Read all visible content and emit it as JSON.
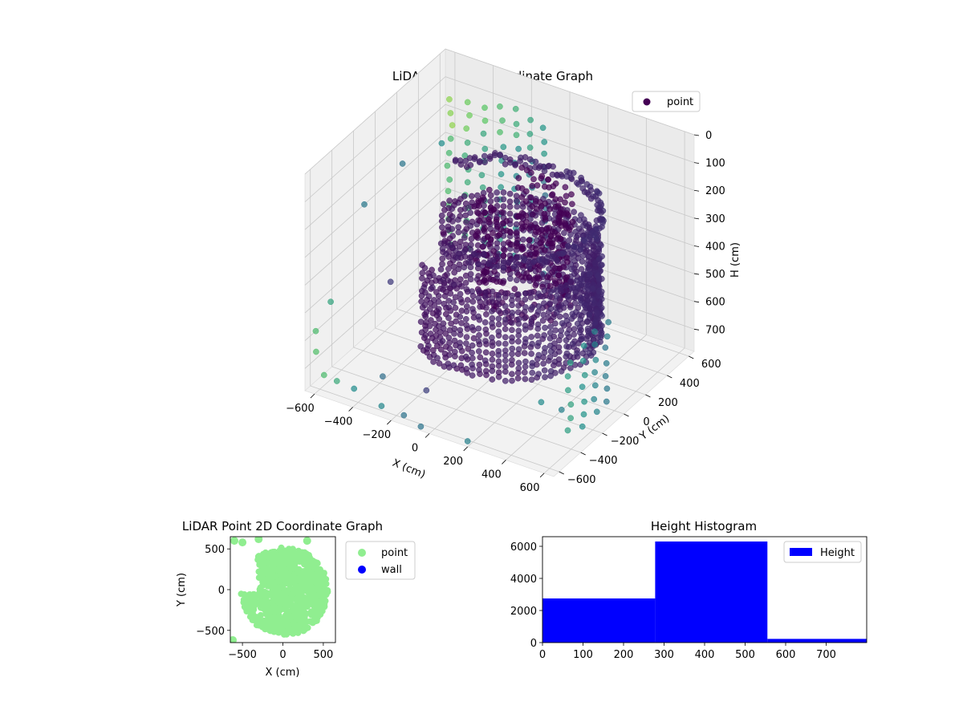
{
  "figure": {
    "background": "#ffffff"
  },
  "chart_data": [
    {
      "type": "scatter",
      "dimension": "3d",
      "title": "LiDAR Point 3D Coordinate Graph",
      "xlabel": "X (cm)",
      "ylabel": "Y (cm)",
      "zlabel": "H (cm)",
      "x_ticks": [
        "−600",
        "−400",
        "−200",
        "0",
        "200",
        "400",
        "600"
      ],
      "y_ticks": [
        "−600",
        "−400",
        "−200",
        "0",
        "200",
        "400",
        "600"
      ],
      "z_ticks": [
        "0",
        "100",
        "200",
        "300",
        "400",
        "500",
        "600",
        "700"
      ],
      "xlim": [
        -650,
        650
      ],
      "ylim": [
        -650,
        650
      ],
      "zlim": [
        0,
        780
      ],
      "z_inverted": true,
      "colormap": "viridis",
      "legend": [
        {
          "name": "point",
          "color": "#440154"
        }
      ],
      "legend_position": "top-right",
      "grid": true,
      "features": {
        "curved_wall": {
          "center": [
            20,
            10
          ],
          "radius": 430,
          "angle_from_deg": -120,
          "angle_to_deg": 160,
          "h_range": [
            320,
            640
          ]
        },
        "upper_ring": {
          "center": [
            20,
            10
          ],
          "radius": 440,
          "angle_from_deg": -100,
          "angle_to_deg": 150,
          "h": 200
        },
        "inner_structure": {
          "center": [
            60,
            120
          ],
          "radius": 190,
          "angle_from_deg": -160,
          "angle_to_deg": 130,
          "h_range": [
            180,
            560
          ]
        },
        "sparse_pillars": [
          {
            "x": -600,
            "y": 600,
            "h_range": [
              150,
              700
            ]
          },
          {
            "x": -520,
            "y": 620,
            "h_range": [
              150,
              700
            ]
          },
          {
            "x": -440,
            "y": 640,
            "h_range": [
              160,
              700
            ]
          },
          {
            "x": -360,
            "y": 650,
            "h_range": [
              140,
              700
            ]
          },
          {
            "x": -280,
            "y": 650,
            "h_range": [
              130,
              700
            ]
          },
          {
            "x": -200,
            "y": 640,
            "h_range": [
              150,
              700
            ]
          },
          {
            "x": -120,
            "y": 630,
            "h_range": [
              150,
              700
            ]
          },
          {
            "x": 640,
            "y": -150,
            "h_range": [
              400,
              720
            ]
          },
          {
            "x": 640,
            "y": -250,
            "h_range": [
              400,
              720
            ]
          },
          {
            "x": 640,
            "y": -350,
            "h_range": [
              420,
              720
            ]
          },
          {
            "x": 620,
            "y": -450,
            "h_range": [
              450,
              720
            ]
          }
        ],
        "stray_points": [
          [
            -620,
            -600,
            650
          ],
          [
            -550,
            -650,
            700
          ],
          [
            -650,
            -550,
            600
          ],
          [
            -600,
            -500,
            500
          ],
          [
            -500,
            -620,
            720
          ],
          [
            -300,
            -550,
            680
          ],
          [
            -100,
            -500,
            700
          ],
          [
            -400,
            -300,
            450
          ],
          [
            -650,
            -100,
            300
          ],
          [
            -620,
            200,
            250
          ],
          [
            -350,
            100,
            400
          ],
          [
            -200,
            300,
            350
          ],
          [
            -500,
            350,
            200
          ],
          [
            -150,
            -620,
            760
          ],
          [
            -50,
            -640,
            770
          ],
          [
            200,
            -650,
            760
          ],
          [
            -250,
            -650,
            740
          ],
          [
            -450,
            -550,
            760
          ],
          [
            550,
            -400,
            650
          ],
          [
            500,
            -500,
            600
          ]
        ]
      }
    },
    {
      "type": "scatter",
      "title": "LiDAR Point 2D Coordinate Graph",
      "xlabel": "X (cm)",
      "ylabel": "Y (cm)",
      "x_ticks": [
        "−500",
        "0",
        "500"
      ],
      "y_ticks": [
        "500",
        "0",
        "−500"
      ],
      "xlim": [
        -650,
        650
      ],
      "ylim": [
        -650,
        650
      ],
      "series": [
        {
          "name": "point",
          "color": "#90ee90"
        },
        {
          "name": "wall",
          "color": "#0000ff"
        }
      ],
      "footprint": {
        "center": [
          20,
          -20
        ],
        "radius": 540,
        "missing_region": {
          "x_range": [
            -600,
            -300
          ],
          "y_range": [
            -50,
            350
          ]
        },
        "outliers": [
          [
            -600,
            600
          ],
          [
            -500,
            580
          ],
          [
            -300,
            620
          ],
          [
            300,
            600
          ],
          [
            -620,
            -620
          ]
        ]
      },
      "legend_position": "outside-right"
    },
    {
      "type": "bar",
      "subtype": "histogram",
      "title": "Height Histogram",
      "x_ticks": [
        "0",
        "100",
        "200",
        "300",
        "400",
        "500",
        "600",
        "700"
      ],
      "y_ticks": [
        "0",
        "2000",
        "4000",
        "6000"
      ],
      "xlim": [
        0,
        800
      ],
      "ylim": [
        0,
        6600
      ],
      "bins": [
        {
          "from": 0,
          "to": 278,
          "count": 2750
        },
        {
          "from": 278,
          "to": 555,
          "count": 6300
        },
        {
          "from": 555,
          "to": 800,
          "count": 230
        }
      ],
      "series": [
        {
          "name": "Height",
          "color": "#0000ff"
        }
      ],
      "legend_position": "top-right"
    }
  ]
}
